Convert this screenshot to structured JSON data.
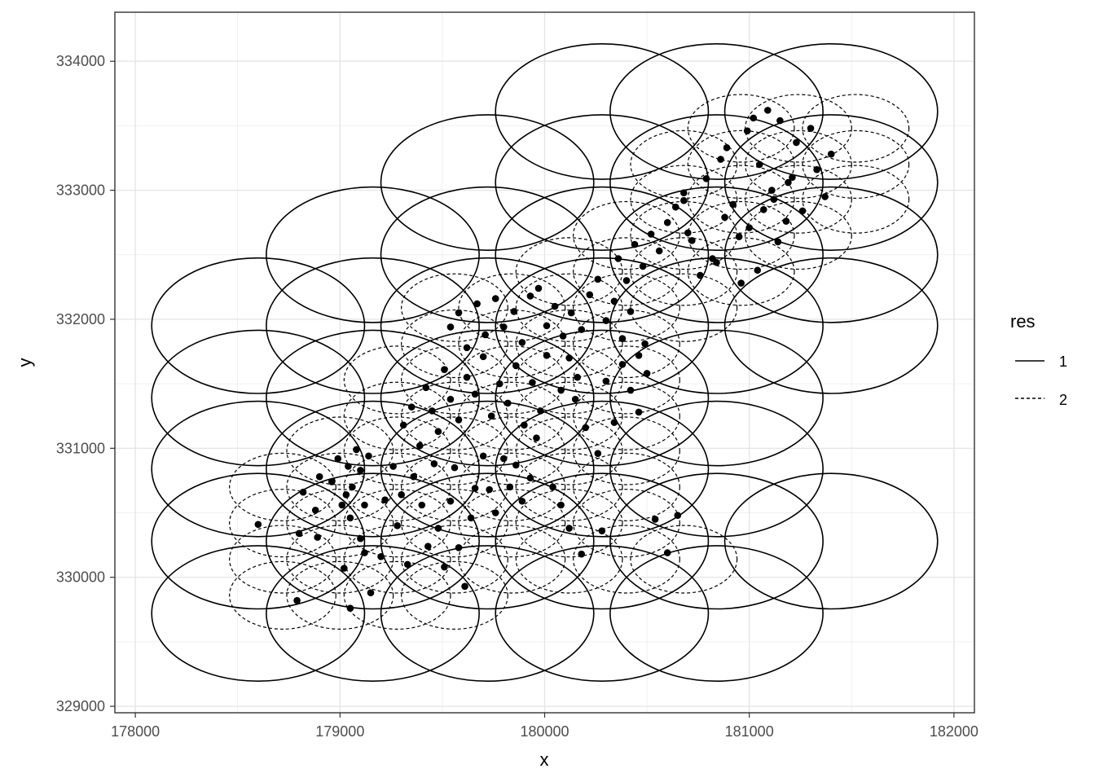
{
  "chart_data": {
    "type": "scatter",
    "title": "",
    "xlabel": "x",
    "ylabel": "y",
    "xlim": [
      177900,
      182100
    ],
    "ylim": [
      328950,
      334380
    ],
    "x_ticks": [
      178000,
      179000,
      180000,
      181000,
      182000
    ],
    "y_ticks": [
      329000,
      330000,
      331000,
      332000,
      333000,
      334000
    ],
    "x_tick_labels": [
      "178000",
      "179000",
      "180000",
      "181000",
      "182000"
    ],
    "y_tick_labels": [
      "329000",
      "330000",
      "331000",
      "332000",
      "333000",
      "334000"
    ],
    "grid": true,
    "legend": {
      "title": "res",
      "placement": "right",
      "entries": [
        {
          "label": "1",
          "linetype": "solid"
        },
        {
          "label": "2",
          "linetype": "dashed"
        }
      ]
    },
    "ellipse_radius": {
      "res1": [
        520,
        525
      ],
      "res2": [
        260,
        262
      ]
    },
    "series": [
      {
        "name": "1",
        "linetype": "solid",
        "centers": [
          [
            178600,
            329720
          ],
          [
            179160,
            329720
          ],
          [
            179720,
            329720
          ],
          [
            180280,
            329720
          ],
          [
            180840,
            329720
          ],
          [
            178600,
            330280
          ],
          [
            179160,
            330280
          ],
          [
            179720,
            330280
          ],
          [
            180280,
            330280
          ],
          [
            180840,
            330280
          ],
          [
            181400,
            330280
          ],
          [
            178600,
            330840
          ],
          [
            179160,
            330840
          ],
          [
            179720,
            330840
          ],
          [
            180280,
            330840
          ],
          [
            180840,
            330840
          ],
          [
            178600,
            331390
          ],
          [
            179160,
            331390
          ],
          [
            179720,
            331390
          ],
          [
            180280,
            331390
          ],
          [
            180840,
            331390
          ],
          [
            178600,
            331950
          ],
          [
            179160,
            331950
          ],
          [
            179720,
            331950
          ],
          [
            180280,
            331950
          ],
          [
            180840,
            331950
          ],
          [
            181400,
            331950
          ],
          [
            179160,
            332500
          ],
          [
            179720,
            332500
          ],
          [
            180280,
            332500
          ],
          [
            180840,
            332500
          ],
          [
            181400,
            332500
          ],
          [
            179720,
            333060
          ],
          [
            180280,
            333060
          ],
          [
            180840,
            333060
          ],
          [
            181400,
            333060
          ],
          [
            180280,
            333610
          ],
          [
            180840,
            333610
          ],
          [
            181400,
            333610
          ]
        ]
      },
      {
        "name": "2",
        "linetype": "dashed",
        "centers": [
          [
            178720,
            329860
          ],
          [
            179000,
            329860
          ],
          [
            179280,
            329860
          ],
          [
            179560,
            329860
          ],
          [
            178720,
            330140
          ],
          [
            179000,
            330140
          ],
          [
            179280,
            330140
          ],
          [
            179560,
            330140
          ],
          [
            179840,
            330140
          ],
          [
            180120,
            330140
          ],
          [
            180400,
            330140
          ],
          [
            180680,
            330140
          ],
          [
            178720,
            330420
          ],
          [
            179000,
            330420
          ],
          [
            179280,
            330420
          ],
          [
            179560,
            330420
          ],
          [
            179840,
            330420
          ],
          [
            180120,
            330420
          ],
          [
            180400,
            330420
          ],
          [
            178720,
            330700
          ],
          [
            179000,
            330700
          ],
          [
            179280,
            330700
          ],
          [
            179560,
            330700
          ],
          [
            179840,
            330700
          ],
          [
            180120,
            330700
          ],
          [
            180400,
            330700
          ],
          [
            179000,
            330980
          ],
          [
            179280,
            330980
          ],
          [
            179560,
            330980
          ],
          [
            179840,
            330980
          ],
          [
            180120,
            330980
          ],
          [
            180400,
            330980
          ],
          [
            179280,
            331250
          ],
          [
            179560,
            331250
          ],
          [
            179840,
            331250
          ],
          [
            180120,
            331250
          ],
          [
            180400,
            331250
          ],
          [
            179280,
            331530
          ],
          [
            179560,
            331530
          ],
          [
            179840,
            331530
          ],
          [
            180120,
            331530
          ],
          [
            180400,
            331530
          ],
          [
            179560,
            331810
          ],
          [
            179840,
            331810
          ],
          [
            180120,
            331810
          ],
          [
            180400,
            331810
          ],
          [
            179560,
            332090
          ],
          [
            179840,
            332090
          ],
          [
            180120,
            332090
          ],
          [
            180400,
            332090
          ],
          [
            180680,
            332090
          ],
          [
            180120,
            332370
          ],
          [
            180400,
            332370
          ],
          [
            180680,
            332370
          ],
          [
            180960,
            332370
          ],
          [
            180400,
            332650
          ],
          [
            180680,
            332650
          ],
          [
            180960,
            332650
          ],
          [
            181240,
            332650
          ],
          [
            180680,
            332930
          ],
          [
            180960,
            332930
          ],
          [
            181240,
            332930
          ],
          [
            181520,
            332930
          ],
          [
            180680,
            333200
          ],
          [
            180960,
            333200
          ],
          [
            181240,
            333200
          ],
          [
            181520,
            333200
          ],
          [
            180960,
            333480
          ],
          [
            181240,
            333480
          ],
          [
            181520,
            333480
          ]
        ]
      }
    ],
    "points": [
      [
        178600,
        330410
      ],
      [
        178790,
        329820
      ],
      [
        178800,
        330340
      ],
      [
        178820,
        330660
      ],
      [
        178880,
        330520
      ],
      [
        178890,
        330310
      ],
      [
        178900,
        330780
      ],
      [
        178960,
        330740
      ],
      [
        178990,
        330920
      ],
      [
        179010,
        330560
      ],
      [
        179030,
        330640
      ],
      [
        179040,
        330860
      ],
      [
        179050,
        330460
      ],
      [
        179060,
        330700
      ],
      [
        179080,
        330990
      ],
      [
        179100,
        330830
      ],
      [
        179120,
        330560
      ],
      [
        179140,
        330940
      ],
      [
        179020,
        330070
      ],
      [
        179050,
        329760
      ],
      [
        179100,
        330300
      ],
      [
        179120,
        330190
      ],
      [
        179150,
        329880
      ],
      [
        179200,
        330160
      ],
      [
        179220,
        330600
      ],
      [
        179260,
        330860
      ],
      [
        179280,
        330400
      ],
      [
        179300,
        330640
      ],
      [
        179330,
        330100
      ],
      [
        179360,
        330780
      ],
      [
        179400,
        330560
      ],
      [
        179430,
        330240
      ],
      [
        179460,
        330880
      ],
      [
        179480,
        330380
      ],
      [
        179510,
        330080
      ],
      [
        179540,
        330590
      ],
      [
        179560,
        330850
      ],
      [
        179580,
        330230
      ],
      [
        179610,
        329930
      ],
      [
        179640,
        330460
      ],
      [
        179660,
        330690
      ],
      [
        179700,
        330940
      ],
      [
        179730,
        330680
      ],
      [
        179760,
        330500
      ],
      [
        179800,
        330920
      ],
      [
        179830,
        330700
      ],
      [
        179860,
        330870
      ],
      [
        179890,
        330590
      ],
      [
        179930,
        330770
      ],
      [
        179960,
        331080
      ],
      [
        179310,
        331180
      ],
      [
        179350,
        331320
      ],
      [
        179390,
        331020
      ],
      [
        179420,
        331470
      ],
      [
        179450,
        331290
      ],
      [
        179480,
        331130
      ],
      [
        179510,
        331610
      ],
      [
        179540,
        331380
      ],
      [
        179580,
        331220
      ],
      [
        179620,
        331550
      ],
      [
        179660,
        331420
      ],
      [
        179700,
        331710
      ],
      [
        179740,
        331250
      ],
      [
        179780,
        331500
      ],
      [
        179820,
        331350
      ],
      [
        179860,
        331640
      ],
      [
        179900,
        331180
      ],
      [
        179940,
        331510
      ],
      [
        179980,
        331290
      ],
      [
        180010,
        331720
      ],
      [
        179540,
        331940
      ],
      [
        179580,
        332050
      ],
      [
        179620,
        331780
      ],
      [
        179670,
        332120
      ],
      [
        179710,
        331880
      ],
      [
        179760,
        332160
      ],
      [
        179800,
        331940
      ],
      [
        179850,
        332060
      ],
      [
        179890,
        331820
      ],
      [
        179930,
        332180
      ],
      [
        179970,
        332240
      ],
      [
        180010,
        331950
      ],
      [
        180050,
        332100
      ],
      [
        180090,
        331870
      ],
      [
        180130,
        332050
      ],
      [
        180180,
        331920
      ],
      [
        180220,
        332190
      ],
      [
        180260,
        332310
      ],
      [
        180300,
        331990
      ],
      [
        180340,
        332140
      ],
      [
        180380,
        331850
      ],
      [
        180420,
        332060
      ],
      [
        180460,
        331720
      ],
      [
        180490,
        331810
      ],
      [
        180150,
        331380
      ],
      [
        180200,
        331160
      ],
      [
        180260,
        330960
      ],
      [
        180300,
        331520
      ],
      [
        180340,
        331200
      ],
      [
        180380,
        331650
      ],
      [
        180420,
        331450
      ],
      [
        180460,
        331280
      ],
      [
        180500,
        331580
      ],
      [
        180080,
        331450
      ],
      [
        180120,
        331700
      ],
      [
        180160,
        331550
      ],
      [
        180040,
        330700
      ],
      [
        180080,
        330560
      ],
      [
        180120,
        330380
      ],
      [
        180180,
        330180
      ],
      [
        180280,
        330360
      ],
      [
        180540,
        330450
      ],
      [
        180600,
        330190
      ],
      [
        180650,
        330480
      ],
      [
        180360,
        332470
      ],
      [
        180400,
        332300
      ],
      [
        180440,
        332580
      ],
      [
        180480,
        332410
      ],
      [
        180520,
        332660
      ],
      [
        180560,
        332530
      ],
      [
        180600,
        332750
      ],
      [
        180640,
        332870
      ],
      [
        180680,
        332980
      ],
      [
        180720,
        332610
      ],
      [
        180760,
        332340
      ],
      [
        180790,
        333090
      ],
      [
        180820,
        332470
      ],
      [
        180860,
        333240
      ],
      [
        180890,
        333330
      ],
      [
        180920,
        332890
      ],
      [
        180950,
        332640
      ],
      [
        180990,
        333460
      ],
      [
        181020,
        333560
      ],
      [
        181050,
        333200
      ],
      [
        181090,
        333620
      ],
      [
        181120,
        332930
      ],
      [
        181150,
        333540
      ],
      [
        181190,
        333060
      ],
      [
        181230,
        333370
      ],
      [
        181260,
        332840
      ],
      [
        181300,
        333480
      ],
      [
        181330,
        333160
      ],
      [
        181370,
        332950
      ],
      [
        181400,
        333280
      ],
      [
        181000,
        332710
      ],
      [
        181040,
        332380
      ],
      [
        181070,
        332850
      ],
      [
        181110,
        333000
      ],
      [
        181140,
        332600
      ],
      [
        181180,
        332760
      ],
      [
        181210,
        333100
      ],
      [
        180680,
        332920
      ],
      [
        180700,
        332670
      ],
      [
        180840,
        332440
      ],
      [
        180880,
        332790
      ],
      [
        180960,
        332280
      ]
    ]
  }
}
